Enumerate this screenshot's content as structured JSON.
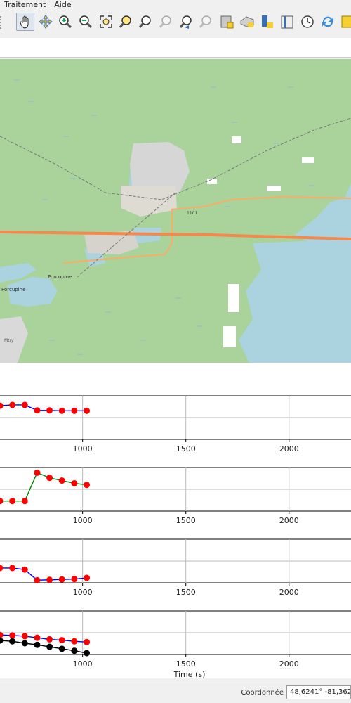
{
  "menu": {
    "items": [
      {
        "label": "Traitement"
      },
      {
        "label": "Aide"
      }
    ]
  },
  "toolbar": {
    "buttons": [
      {
        "icon": "pan-hand-icon",
        "active": true
      },
      {
        "icon": "pan-to-selection-icon"
      },
      {
        "icon": "zoom-in-icon"
      },
      {
        "icon": "zoom-out-icon"
      },
      {
        "icon": "zoom-full-icon"
      },
      {
        "icon": "zoom-to-selection-icon"
      },
      {
        "icon": "zoom-to-layer-icon"
      },
      {
        "icon": "zoom-native-icon"
      },
      {
        "icon": "zoom-last-icon"
      },
      {
        "icon": "zoom-next-icon"
      },
      {
        "icon": "new-bookmark-icon"
      },
      {
        "icon": "show-bookmarks-icon"
      },
      {
        "icon": "spatial-bookmark-icon"
      },
      {
        "icon": "map-book-icon"
      },
      {
        "icon": "temporal-controller-icon"
      },
      {
        "icon": "refresh-icon"
      },
      {
        "icon": "new-layer-icon"
      }
    ]
  },
  "map": {
    "place_labels": [
      "Porcupine",
      "Porcupine",
      "Mtry",
      "1101"
    ],
    "colors": {
      "land": "#a9d39a",
      "water": "#aad3df",
      "highway": "#f5884a",
      "urban": "#d8d8d8"
    }
  },
  "chart_data": [
    {
      "type": "line",
      "xlim": [
        600,
        2300
      ],
      "xticks": [
        1000,
        1500,
        2000
      ],
      "series": [
        {
          "color": "#0000ff",
          "marker": "#ff0000",
          "x": [
            600,
            660,
            720,
            780,
            840,
            900,
            960,
            1020
          ],
          "y": [
            0.82,
            0.84,
            0.84,
            0.7,
            0.7,
            0.69,
            0.69,
            0.69
          ]
        }
      ],
      "ylim": [
        0,
        1
      ]
    },
    {
      "type": "line",
      "xlim": [
        600,
        2300
      ],
      "xticks": [
        1000,
        1500,
        2000
      ],
      "series": [
        {
          "color": "#008000",
          "marker": "#ff0000",
          "x": [
            600,
            660,
            720,
            780,
            840,
            900,
            960,
            1020
          ],
          "y": [
            0.22,
            0.22,
            0.22,
            0.94,
            0.81,
            0.74,
            0.67,
            0.63
          ]
        }
      ],
      "ylim": [
        0,
        1
      ]
    },
    {
      "type": "line",
      "xlim": [
        600,
        2300
      ],
      "xticks": [
        1000,
        1500,
        2000
      ],
      "series": [
        {
          "color": "#0000ff",
          "marker": "#ff0000",
          "x": [
            600,
            660,
            720,
            780,
            840,
            900,
            960,
            1020
          ],
          "y": [
            0.34,
            0.34,
            0.3,
            0.03,
            0.04,
            0.05,
            0.06,
            0.09
          ]
        }
      ],
      "ylim": [
        0,
        1
      ]
    },
    {
      "type": "line",
      "xlim": [
        600,
        2300
      ],
      "xticks": [
        1000,
        1500,
        2000
      ],
      "xlabel": "Time (s)",
      "series": [
        {
          "color": "#0000ff",
          "marker": "#ff0000",
          "x": [
            600,
            660,
            720,
            780,
            840,
            900,
            960,
            1020
          ],
          "y": [
            0.46,
            0.45,
            0.43,
            0.39,
            0.35,
            0.33,
            0.3,
            0.28
          ]
        },
        {
          "color": "#000000",
          "marker": "#000000",
          "x": [
            600,
            660,
            720,
            780,
            840,
            900,
            960,
            1020
          ],
          "y": [
            0.32,
            0.3,
            0.25,
            0.21,
            0.16,
            0.11,
            0.06,
            0.0
          ]
        }
      ],
      "ylim": [
        0,
        1
      ]
    }
  ],
  "status": {
    "coord_label": "Coordonnée",
    "coord_value": "48,6241° -81,3622°"
  }
}
